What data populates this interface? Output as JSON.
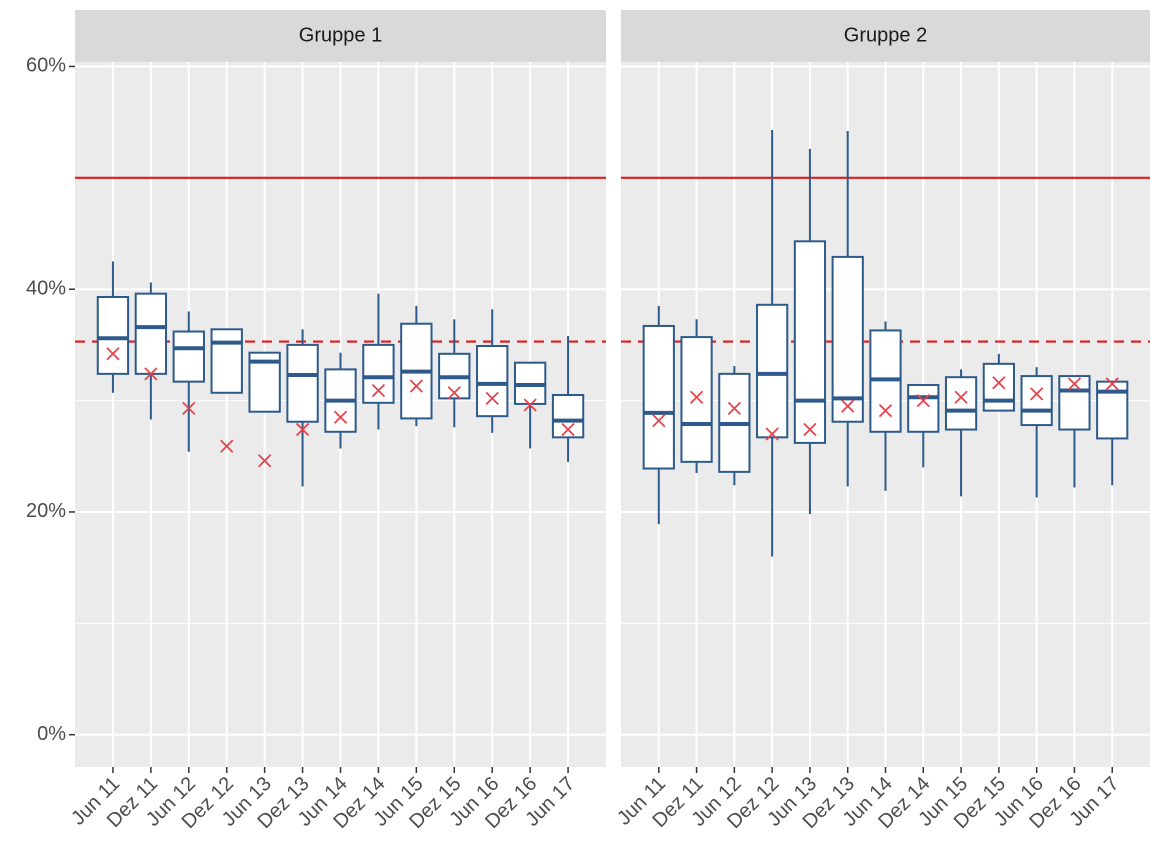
{
  "chart_data": {
    "type": "box",
    "categories": [
      "Jun 11",
      "Dez 11",
      "Jun 12",
      "Dez 12",
      "Jun 13",
      "Dez 13",
      "Jun 14",
      "Dez 14",
      "Jun 15",
      "Dez 15",
      "Jun 16",
      "Dez 16",
      "Jun 17"
    ],
    "ylim": [
      -2.9,
      60.4
    ],
    "yticks": [
      {
        "value": 0,
        "label": "0%"
      },
      {
        "value": 20,
        "label": "20%"
      },
      {
        "value": 40,
        "label": "40%"
      },
      {
        "value": 60,
        "label": "60%"
      }
    ],
    "yminor": [
      10,
      30,
      50
    ],
    "grid": true,
    "box_color": "#2d5a8b",
    "mean_color": "#e8444c",
    "hlines": [
      {
        "value": 50,
        "color": "#e31a1c",
        "style": "solid"
      },
      {
        "value": 35.3,
        "color": "#e31a1c",
        "style": "dashed"
      }
    ],
    "panels": [
      {
        "title": "Gruppe 1",
        "min": [
          30.7,
          28.3,
          25.4,
          30.7,
          29.0,
          22.3,
          25.7,
          27.4,
          27.7,
          27.6,
          27.1,
          25.7,
          24.5
        ],
        "q1": [
          32.4,
          32.4,
          31.7,
          30.7,
          29.0,
          28.1,
          27.2,
          29.8,
          28.4,
          30.2,
          28.6,
          29.7,
          26.7
        ],
        "median": [
          35.6,
          36.6,
          34.7,
          35.2,
          33.5,
          32.3,
          30.0,
          32.1,
          32.6,
          32.1,
          31.5,
          31.4,
          28.2
        ],
        "q3": [
          39.3,
          39.6,
          36.2,
          36.4,
          34.3,
          35.0,
          32.8,
          35.0,
          36.9,
          34.2,
          34.9,
          33.4,
          30.5
        ],
        "max": [
          42.5,
          40.6,
          38.0,
          36.4,
          34.3,
          36.4,
          34.3,
          39.6,
          38.5,
          37.3,
          38.2,
          33.4,
          35.8
        ],
        "mean": [
          34.2,
          32.4,
          29.3,
          25.9,
          24.6,
          27.4,
          28.5,
          30.9,
          31.3,
          30.7,
          30.2,
          29.6,
          27.4
        ]
      },
      {
        "title": "Gruppe 2",
        "min": [
          18.9,
          23.5,
          22.4,
          16.0,
          19.8,
          22.3,
          21.9,
          24.0,
          21.4,
          29.1,
          21.3,
          22.2,
          22.4
        ],
        "q1": [
          23.9,
          24.5,
          23.6,
          26.7,
          26.2,
          28.1,
          27.2,
          27.2,
          27.4,
          29.1,
          27.8,
          27.4,
          26.6
        ],
        "median": [
          28.9,
          27.9,
          27.9,
          32.4,
          30.0,
          30.2,
          31.9,
          30.3,
          29.1,
          30.0,
          29.1,
          30.9,
          30.8
        ],
        "q3": [
          36.7,
          35.7,
          32.4,
          38.6,
          44.3,
          42.9,
          36.3,
          31.4,
          32.1,
          33.3,
          32.2,
          32.2,
          31.7
        ],
        "max": [
          38.5,
          37.3,
          33.1,
          54.3,
          52.6,
          54.2,
          37.1,
          31.4,
          32.8,
          34.2,
          33.0,
          32.2,
          31.7
        ],
        "mean": [
          28.2,
          30.3,
          29.3,
          27.0,
          27.4,
          29.5,
          29.1,
          30.0,
          30.3,
          31.6,
          30.6,
          31.5,
          31.5
        ]
      }
    ]
  }
}
